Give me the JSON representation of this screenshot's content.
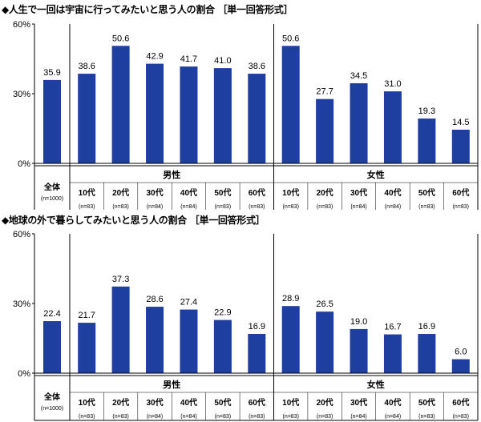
{
  "colors": {
    "bar": "#1F3FA0",
    "grid": "#000000"
  },
  "chart_data": [
    {
      "type": "bar",
      "title": "◆人生で一回は宇宙に行ってみたいと思う人の割合 ［単一回答形式］",
      "ylim": [
        0,
        60
      ],
      "yticks": [
        "0%",
        "30%",
        "60%"
      ],
      "unit": "%",
      "total": {
        "label": "全体",
        "n": "(n=1000)",
        "value": 35.9
      },
      "groups": [
        {
          "name": "男性",
          "categories": [
            "10代",
            "20代",
            "30代",
            "40代",
            "50代",
            "60代"
          ],
          "n": [
            "(n=83)",
            "(n=83)",
            "(n=84)",
            "(n=84)",
            "(n=83)",
            "(n=83)"
          ],
          "values": [
            38.6,
            50.6,
            42.9,
            41.7,
            41.0,
            38.6
          ]
        },
        {
          "name": "女性",
          "categories": [
            "10代",
            "20代",
            "30代",
            "40代",
            "50代",
            "60代"
          ],
          "n": [
            "(n=83)",
            "(n=83)",
            "(n=84)",
            "(n=84)",
            "(n=83)",
            "(n=83)"
          ],
          "values": [
            50.6,
            27.7,
            34.5,
            31.0,
            19.3,
            14.5
          ]
        }
      ]
    },
    {
      "type": "bar",
      "title": "◆地球の外で暮らしてみたいと思う人の割合 ［単一回答形式］",
      "ylim": [
        0,
        60
      ],
      "yticks": [
        "0%",
        "30%",
        "60%"
      ],
      "unit": "%",
      "total": {
        "label": "全体",
        "n": "(n=1000)",
        "value": 22.4
      },
      "groups": [
        {
          "name": "男性",
          "categories": [
            "10代",
            "20代",
            "30代",
            "40代",
            "50代",
            "60代"
          ],
          "n": [
            "(n=83)",
            "(n=83)",
            "(n=84)",
            "(n=84)",
            "(n=83)",
            "(n=83)"
          ],
          "values": [
            21.7,
            37.3,
            28.6,
            27.4,
            22.9,
            16.9
          ]
        },
        {
          "name": "女性",
          "categories": [
            "10代",
            "20代",
            "30代",
            "40代",
            "50代",
            "60代"
          ],
          "n": [
            "(n=83)",
            "(n=83)",
            "(n=84)",
            "(n=84)",
            "(n=83)",
            "(n=83)"
          ],
          "values": [
            28.9,
            26.5,
            19.0,
            16.7,
            16.9,
            6.0
          ]
        }
      ]
    }
  ]
}
